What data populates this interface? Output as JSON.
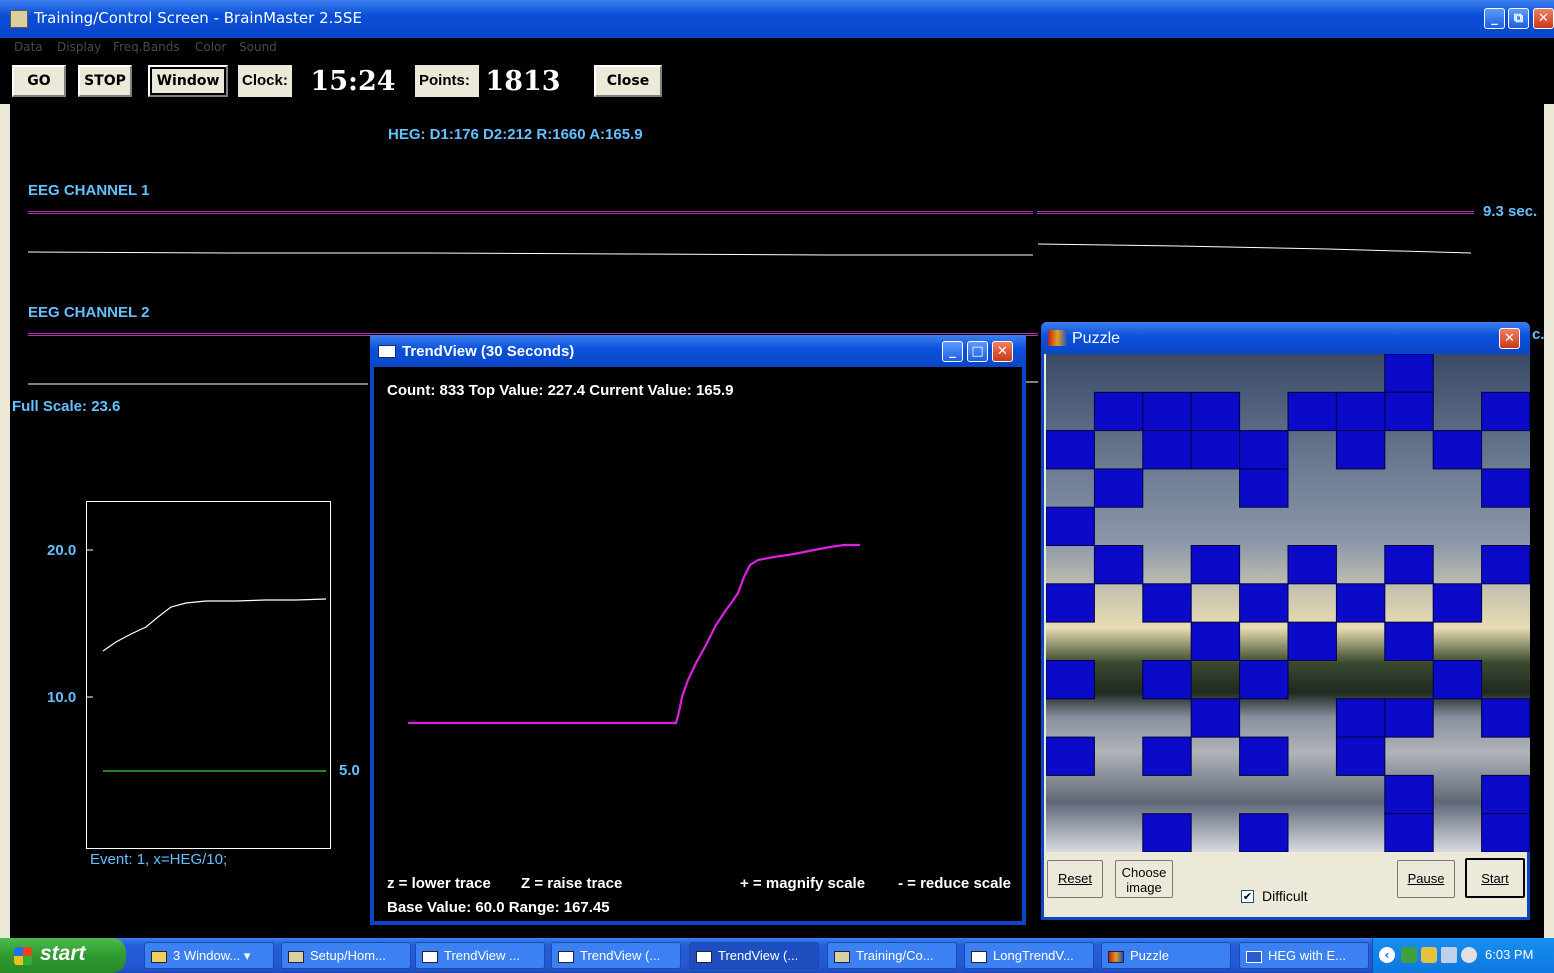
{
  "window": {
    "title": "Training/Control Screen - BrainMaster 2.5SE",
    "min": "_",
    "max": "□",
    "close": "✕"
  },
  "menu": [
    "Data",
    "Display",
    "Freq.Bands",
    "Color",
    "Sound"
  ],
  "toolbar": {
    "go": "GO",
    "stop": "STOP",
    "window": "Window",
    "clock_label": "Clock:",
    "clock_value": "15:24",
    "points_label": "Points:",
    "points_value": "1813",
    "close": "Close"
  },
  "main": {
    "heg_readout": "HEG: D1:176 D2:212 R:1660 A:165.9",
    "ch1_label": "EEG CHANNEL 1",
    "ch1_time": "9.3 sec.",
    "ch2_label": "EEG CHANNEL 2",
    "ch2_time_partial": "c.",
    "full_scale": "Full Scale: 23.6",
    "small_chart": {
      "tick_20": "20.0",
      "tick_10": "10.0",
      "threshold": "5.0",
      "event": "Event: 1, x=HEG/10;"
    }
  },
  "trendview": {
    "title": "TrendView (30 Seconds)",
    "stats": "Count: 833 Top Value: 227.4  Current Value: 165.9",
    "help_lower": "z = lower trace",
    "help_raise": "Z = raise trace",
    "help_magnify": "+ = magnify scale",
    "help_reduce": "- = reduce scale",
    "base_range": "Base Value:  60.0  Range: 167.45"
  },
  "puzzle": {
    "title": "Puzzle",
    "reset": "Reset",
    "choose_line1": "Choose",
    "choose_line2": "image",
    "pause": "Pause",
    "start": "Start",
    "difficult": "Difficult",
    "difficult_checked": true,
    "grid": [
      "0000000100",
      "0111011101",
      "1011101010",
      "0100100001",
      "1000000000",
      "0101010101",
      "1010101010",
      "0001010100",
      "1010100010",
      "0001001101",
      "1010101000",
      "0000000101",
      "0010100101"
    ]
  },
  "taskbar": {
    "start": "start",
    "items": [
      {
        "label": "3 Window...",
        "icon": "folder-icon"
      },
      {
        "label": "Setup/Hom...",
        "icon": "app-icon"
      },
      {
        "label": "TrendView ...",
        "icon": "window-icon"
      },
      {
        "label": "TrendView (...",
        "icon": "window-icon"
      },
      {
        "label": "TrendView (...",
        "icon": "window-icon"
      },
      {
        "label": "Training/Co...",
        "icon": "app-icon"
      },
      {
        "label": "LongTrendV...",
        "icon": "window-icon"
      },
      {
        "label": "Puzzle",
        "icon": "puzzle-icon"
      },
      {
        "label": "HEG with E...",
        "icon": "word-icon"
      }
    ],
    "clock": "6:03 PM"
  },
  "colors": {
    "cyan_text": "#64c0ff",
    "trend_trace": "#e020e0",
    "small_trace": "#ffffff",
    "threshold_line": "#30b030",
    "puzzle_tile": "#0a0ac8",
    "channel_line": "#b030b0"
  }
}
